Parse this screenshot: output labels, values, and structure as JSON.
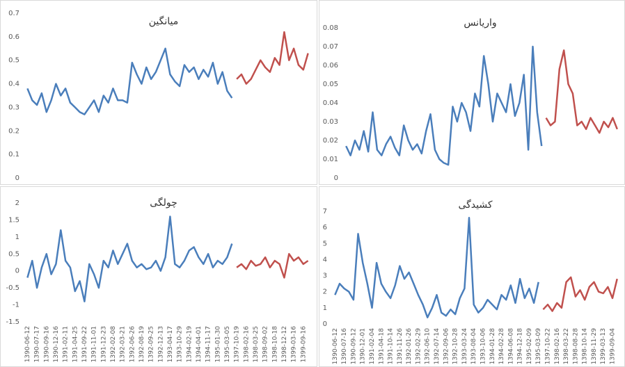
{
  "chart_data": [
    {
      "type": "line",
      "title": "میانگین",
      "ylim": [
        0,
        0.7
      ],
      "yticks": [
        0,
        0.1,
        0.2,
        0.3,
        0.4,
        0.5,
        0.6,
        0.7
      ],
      "series": [
        {
          "color": "#4a7ebb",
          "values": [
            0.38,
            0.33,
            0.31,
            0.36,
            0.28,
            0.33,
            0.4,
            0.35,
            0.38,
            0.32,
            0.3,
            0.28,
            0.27,
            0.3,
            0.33,
            0.28,
            0.35,
            0.32,
            0.38,
            0.33,
            0.33,
            0.32,
            0.49,
            0.44,
            0.4,
            0.47,
            0.42,
            0.45,
            0.5,
            0.55,
            0.44,
            0.41,
            0.39,
            0.48,
            0.45,
            0.47,
            0.42,
            0.46,
            0.43,
            0.49,
            0.4,
            0.45,
            0.37,
            0.34,
            null,
            null,
            null,
            null,
            null,
            null,
            null,
            null,
            null,
            null,
            null,
            null,
            null,
            null,
            null,
            null
          ]
        },
        {
          "color": "#c0504d",
          "values": [
            null,
            null,
            null,
            null,
            null,
            null,
            null,
            null,
            null,
            null,
            null,
            null,
            null,
            null,
            null,
            null,
            null,
            null,
            null,
            null,
            null,
            null,
            null,
            null,
            null,
            null,
            null,
            null,
            null,
            null,
            null,
            null,
            null,
            null,
            null,
            null,
            null,
            null,
            null,
            null,
            null,
            null,
            null,
            null,
            0.42,
            0.44,
            0.4,
            0.42,
            0.46,
            0.5,
            0.47,
            0.45,
            0.51,
            0.48,
            0.62,
            0.5,
            0.55,
            0.48,
            0.46,
            0.53
          ]
        }
      ]
    },
    {
      "type": "line",
      "title": "واریانس",
      "ylim": [
        0,
        0.08
      ],
      "yticks": [
        0,
        0.01,
        0.02,
        0.03,
        0.04,
        0.05,
        0.06,
        0.07,
        0.08
      ],
      "series": [
        {
          "color": "#4a7ebb",
          "values": [
            0.017,
            0.012,
            0.02,
            0.015,
            0.025,
            0.014,
            0.035,
            0.015,
            0.012,
            0.018,
            0.022,
            0.016,
            0.012,
            0.028,
            0.02,
            0.015,
            0.018,
            0.013,
            0.025,
            0.034,
            0.015,
            0.01,
            0.008,
            0.007,
            0.038,
            0.03,
            0.04,
            0.035,
            0.025,
            0.045,
            0.038,
            0.065,
            0.05,
            0.03,
            0.045,
            0.04,
            0.035,
            0.05,
            0.033,
            0.04,
            0.055,
            0.015,
            0.07,
            0.035,
            0.017,
            null,
            null,
            null,
            null,
            null,
            null,
            null,
            null,
            null,
            null,
            null,
            null,
            null,
            null,
            null,
            null,
            null
          ]
        },
        {
          "color": "#c0504d",
          "values": [
            null,
            null,
            null,
            null,
            null,
            null,
            null,
            null,
            null,
            null,
            null,
            null,
            null,
            null,
            null,
            null,
            null,
            null,
            null,
            null,
            null,
            null,
            null,
            null,
            null,
            null,
            null,
            null,
            null,
            null,
            null,
            null,
            null,
            null,
            null,
            null,
            null,
            null,
            null,
            null,
            null,
            null,
            null,
            null,
            null,
            0.032,
            0.028,
            0.03,
            0.058,
            0.068,
            0.05,
            0.045,
            0.028,
            0.03,
            0.026,
            0.032,
            0.028,
            0.024,
            0.03,
            0.027,
            0.032,
            0.026
          ]
        }
      ]
    },
    {
      "type": "line",
      "title": "چولگی",
      "ylim": [
        -1.5,
        2
      ],
      "yticks": [
        -1.5,
        -1,
        -0.5,
        0,
        0.5,
        1,
        1.5,
        2
      ],
      "categories": [
        "1390-06-12",
        null,
        "1390-07-17",
        null,
        "1390-09-16",
        null,
        "1390-12-16",
        null,
        "1391-02-11",
        null,
        "1391-04-25",
        null,
        "1391-09-22",
        null,
        "1391-11-01",
        null,
        "1391-12-23",
        null,
        "1392-02-08",
        null,
        "1392-03-21",
        null,
        "1392-06-26",
        null,
        "1392-08-19",
        null,
        "1392-09-25",
        null,
        "1392-12-13",
        null,
        "1393-04-17",
        null,
        "1393-10-29",
        null,
        "1394-02-19",
        null,
        "1394-04-01",
        null,
        "1394-11-17",
        null,
        "1395-01-30",
        null,
        "1395-03-05",
        null,
        "1397-10-19",
        null,
        "1398-02-16",
        null,
        "1398-03-25",
        null,
        "1398-09-02",
        null,
        "1398-10-18",
        null,
        "1398-12-12",
        null,
        "1399-03-16",
        null,
        "1399-09-16",
        null
      ],
      "series": [
        {
          "color": "#4a7ebb",
          "values": [
            -0.2,
            0.3,
            -0.5,
            0.1,
            0.5,
            -0.1,
            0.2,
            1.2,
            0.3,
            0.1,
            -0.6,
            -0.3,
            -0.9,
            0.2,
            -0.1,
            -0.5,
            0.3,
            0.1,
            0.6,
            0.2,
            0.5,
            0.8,
            0.3,
            0.1,
            0.2,
            0.05,
            0.1,
            0.3,
            0,
            0.4,
            1.6,
            0.2,
            0.1,
            0.3,
            0.6,
            0.7,
            0.4,
            0.2,
            0.5,
            0.1,
            0.3,
            0.2,
            0.4,
            0.8,
            null,
            null,
            null,
            null,
            null,
            null,
            null,
            null,
            null,
            null,
            null,
            null,
            null,
            null,
            null,
            null
          ]
        },
        {
          "color": "#c0504d",
          "values": [
            null,
            null,
            null,
            null,
            null,
            null,
            null,
            null,
            null,
            null,
            null,
            null,
            null,
            null,
            null,
            null,
            null,
            null,
            null,
            null,
            null,
            null,
            null,
            null,
            null,
            null,
            null,
            null,
            null,
            null,
            null,
            null,
            null,
            null,
            null,
            null,
            null,
            null,
            null,
            null,
            null,
            null,
            null,
            null,
            0.1,
            0.2,
            0.05,
            0.3,
            0.15,
            0.2,
            0.4,
            0.1,
            0.3,
            0.2,
            -0.2,
            0.5,
            0.3,
            0.4,
            0.2,
            0.3
          ]
        }
      ]
    },
    {
      "type": "line",
      "title": "کشیدگی",
      "ylim": [
        0,
        7
      ],
      "yticks": [
        0,
        1,
        2,
        3,
        4,
        5,
        6,
        7
      ],
      "categories": [
        "1390-06-12",
        null,
        "1390-07-16",
        null,
        "1390-09-12",
        null,
        "1390-12-01",
        null,
        "1391-02-04",
        null,
        "1391-04-18",
        null,
        "1391-10-14",
        null,
        "1391-11-26",
        null,
        "1392-01-26",
        null,
        "1392-02-29",
        null,
        "1392-06-10",
        null,
        "1392-07-14",
        null,
        "1392-09-06",
        null,
        "1392-10-28",
        null,
        "1393-03-24",
        null,
        "1393-08-04",
        null,
        "1393-10-06",
        null,
        "1394-01-28",
        null,
        "1394-02-28",
        null,
        "1394-06-08",
        null,
        "1394-12-18",
        null,
        "1395-02-09",
        null,
        "1395-03-09",
        null,
        "1397-10-22",
        null,
        "1398-02-16",
        null,
        "1398-03-22",
        null,
        "1398-08-28",
        null,
        "1398-10-14",
        null,
        "1398-11-29",
        null,
        "1399-03-13",
        null,
        "1399-09-04",
        null
      ],
      "series": [
        {
          "color": "#4a7ebb",
          "values": [
            1.8,
            2.5,
            2.2,
            2.0,
            1.5,
            5.6,
            3.8,
            2.5,
            1.0,
            3.8,
            2.5,
            2.0,
            1.6,
            2.4,
            3.6,
            2.8,
            3.2,
            2.5,
            1.8,
            1.2,
            0.4,
            1.0,
            1.8,
            0.7,
            0.5,
            0.9,
            0.6,
            1.6,
            2.2,
            6.6,
            1.2,
            0.7,
            1.0,
            1.5,
            1.2,
            0.9,
            1.8,
            1.5,
            2.4,
            1.3,
            2.8,
            1.6,
            2.2,
            1.3,
            2.6,
            null,
            null,
            null,
            null,
            null,
            null,
            null,
            null,
            null,
            null,
            null,
            null,
            null,
            null,
            null,
            null,
            null
          ]
        },
        {
          "color": "#c0504d",
          "values": [
            null,
            null,
            null,
            null,
            null,
            null,
            null,
            null,
            null,
            null,
            null,
            null,
            null,
            null,
            null,
            null,
            null,
            null,
            null,
            null,
            null,
            null,
            null,
            null,
            null,
            null,
            null,
            null,
            null,
            null,
            null,
            null,
            null,
            null,
            null,
            null,
            null,
            null,
            null,
            null,
            null,
            null,
            null,
            null,
            null,
            0.9,
            1.2,
            0.8,
            1.3,
            1.0,
            2.6,
            2.9,
            1.7,
            2.1,
            1.5,
            2.3,
            2.6,
            2.0,
            1.9,
            2.3,
            1.6,
            2.8
          ]
        }
      ]
    }
  ]
}
